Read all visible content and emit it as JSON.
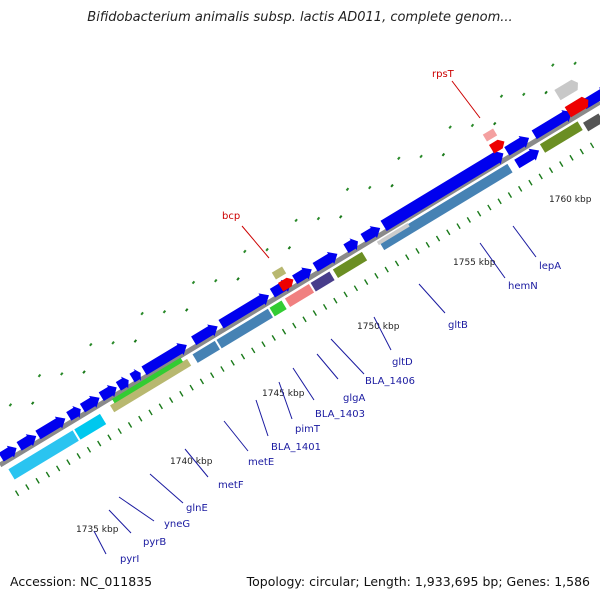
{
  "title": "Bifidobacterium animalis subsp. lactis AD011, complete genom...",
  "accession": "Accession: NC_011835",
  "summary": "Topology: circular; Length: 1,933,695 bp; Genes: 1,586",
  "axis": {
    "unit": "kbp",
    "tick_labels": [
      "1735 kbp",
      "1740 kbp",
      "1745 kbp",
      "1750 kbp",
      "1755 kbp",
      "1760 kbp"
    ]
  },
  "gene_labels": [
    "pyrI",
    "pyrB",
    "yneG",
    "glnE",
    "metF",
    "metE",
    "BLA_1401",
    "pimT",
    "BLA_1403",
    "glgA",
    "BLA_1406",
    "gltD",
    "gltB",
    "hemN",
    "lepA"
  ],
  "highlight_labels": [
    "bcp",
    "rpsT"
  ],
  "colors": {
    "backbone": "#8a8a8a",
    "forward": "#0000ee",
    "label": "#1a1aa0",
    "highlight": "#cc0000",
    "tick": "#1a7a1a"
  }
}
